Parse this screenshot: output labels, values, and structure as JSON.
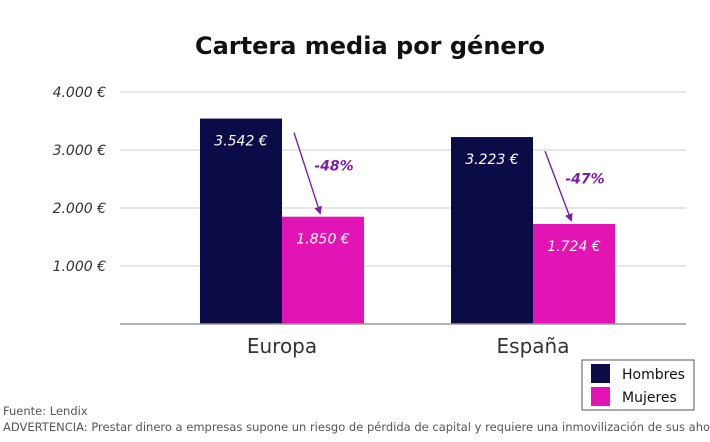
{
  "chart_data": {
    "type": "bar",
    "title": "Cartera media por género",
    "categories": [
      "Europa",
      "España"
    ],
    "series": [
      {
        "name": "Hombres",
        "color": "#0b0b47",
        "values": [
          3542,
          3223
        ],
        "value_labels": [
          "3.542 €",
          "3.223 €"
        ]
      },
      {
        "name": "Mujeres",
        "color": "#e314b5",
        "values": [
          1850,
          1724
        ],
        "value_labels": [
          "1.850 €",
          "1.724 €"
        ]
      }
    ],
    "ylim": [
      0,
      4000
    ],
    "yticks": [
      {
        "value": 1000,
        "label": "1.000 €"
      },
      {
        "value": 2000,
        "label": "2.000 €"
      },
      {
        "value": 3000,
        "label": "3.000 €"
      },
      {
        "value": 4000,
        "label": "4.000 €"
      }
    ],
    "annotations": [
      {
        "category": "Europa",
        "label": "-48%"
      },
      {
        "category": "España",
        "label": "-47%"
      }
    ],
    "annotation_color": "#7b1fa2",
    "grid": true,
    "legend": "bottom-right"
  },
  "footer": {
    "source": "Fuente: Lendix",
    "disclaimer": "ADVERTENCIA: Prestar dinero a empresas supone un riesgo de pérdida de capital y requiere una inmovilización de sus ahorros."
  }
}
